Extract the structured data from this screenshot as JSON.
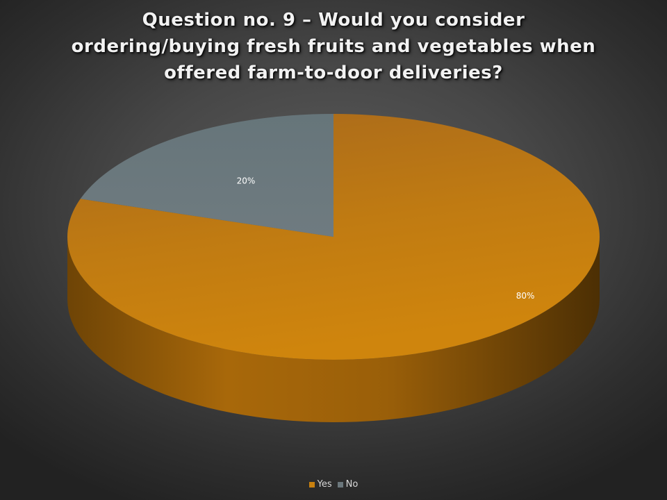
{
  "chart_data": {
    "type": "pie",
    "title_lines": [
      "Question no. 9 – Would you consider",
      "ordering/buying fresh fruits and vegetables when",
      "offered farm-to-door deliveries?"
    ],
    "categories": [
      "Yes",
      "No"
    ],
    "values": [
      80,
      20
    ],
    "data_labels": [
      "80%",
      "20%"
    ],
    "colors": [
      "#c9810f",
      "#6b777c"
    ],
    "legend_position": "bottom",
    "style": "3d"
  }
}
